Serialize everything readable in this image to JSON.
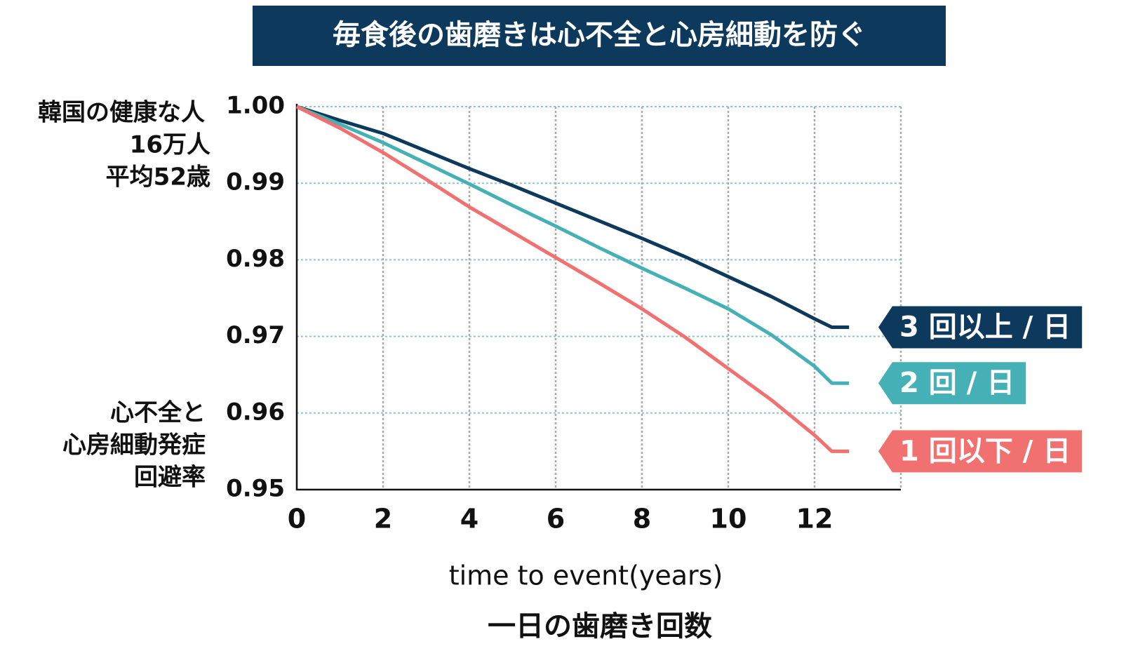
{
  "chart_data": {
    "type": "line",
    "title": "毎食後の歯磨きは心不全と心房細動を防ぐ",
    "annotation": [
      "韓国の健康な人",
      "16万人",
      "平均52歳"
    ],
    "ylabel": [
      "心不全と",
      "心房細動発症",
      "回避率"
    ],
    "xlabel": "time to event(years)",
    "legend_title": "一日の歯磨き回数",
    "x": [
      0,
      1,
      2,
      3,
      4,
      5,
      6,
      7,
      8,
      9,
      10,
      11,
      12,
      12.4,
      12.8
    ],
    "series": [
      {
        "name": "3 回以上 / 日",
        "color": "#0d3a5c",
        "values": [
          1.0,
          0.9982,
          0.9965,
          0.9942,
          0.9919,
          0.9897,
          0.9874,
          0.9851,
          0.9828,
          0.9804,
          0.9778,
          0.9752,
          0.9723,
          0.9712,
          0.9712
        ]
      },
      {
        "name": "2 回 / 日",
        "color": "#45b0b5",
        "values": [
          1.0,
          0.9977,
          0.9953,
          0.9926,
          0.9899,
          0.9871,
          0.9844,
          0.9816,
          0.9789,
          0.9763,
          0.9736,
          0.9702,
          0.9661,
          0.9639,
          0.9639
        ]
      },
      {
        "name": "1 回以下 / 日",
        "color": "#f07170",
        "values": [
          1.0,
          0.9972,
          0.994,
          0.9905,
          0.9869,
          0.9836,
          0.9803,
          0.977,
          0.9736,
          0.9699,
          0.9658,
          0.9617,
          0.9571,
          0.955,
          0.955
        ]
      }
    ],
    "xlim": [
      0,
      14
    ],
    "xticks": [
      0,
      2,
      4,
      6,
      8,
      10,
      12
    ],
    "ylim": [
      0.95,
      1.0
    ],
    "yticks": [
      {
        "value": 1.0,
        "label": "1.00"
      },
      0.99,
      0.98,
      0.97,
      0.96,
      0.95
    ],
    "grid": true
  }
}
